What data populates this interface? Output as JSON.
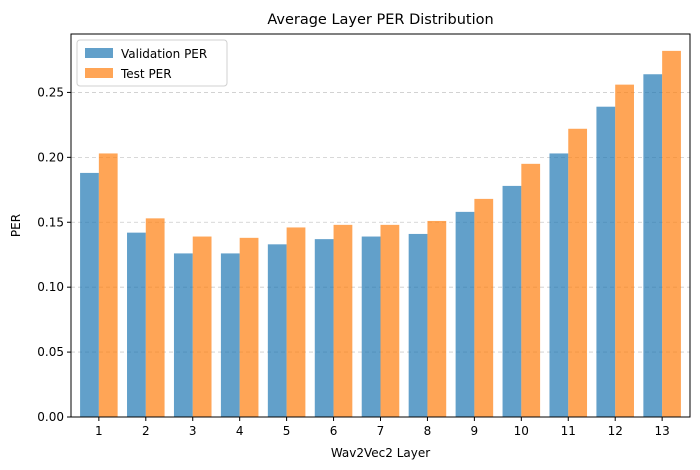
{
  "chart_data": {
    "type": "bar",
    "title": "Average Layer PER Distribution",
    "xlabel": "Wav2Vec2 Layer",
    "ylabel": "PER",
    "categories": [
      "1",
      "2",
      "3",
      "4",
      "5",
      "6",
      "7",
      "8",
      "9",
      "10",
      "11",
      "12",
      "13"
    ],
    "series": [
      {
        "name": "Validation PER",
        "color": "#1f77b4",
        "values": [
          0.188,
          0.142,
          0.126,
          0.126,
          0.133,
          0.137,
          0.139,
          0.141,
          0.158,
          0.178,
          0.203,
          0.239,
          0.264
        ]
      },
      {
        "name": "Test PER",
        "color": "#ff7f0e",
        "values": [
          0.203,
          0.153,
          0.139,
          0.138,
          0.146,
          0.148,
          0.148,
          0.151,
          0.168,
          0.195,
          0.222,
          0.256,
          0.282
        ]
      }
    ],
    "ylim": [
      0,
      0.295
    ],
    "yticks": [
      "0.00",
      "0.05",
      "0.10",
      "0.15",
      "0.20",
      "0.25"
    ],
    "ytick_values": [
      0,
      0.05,
      0.1,
      0.15,
      0.2,
      0.25
    ],
    "grid": "y-dashed",
    "legend_position": "upper-left"
  }
}
